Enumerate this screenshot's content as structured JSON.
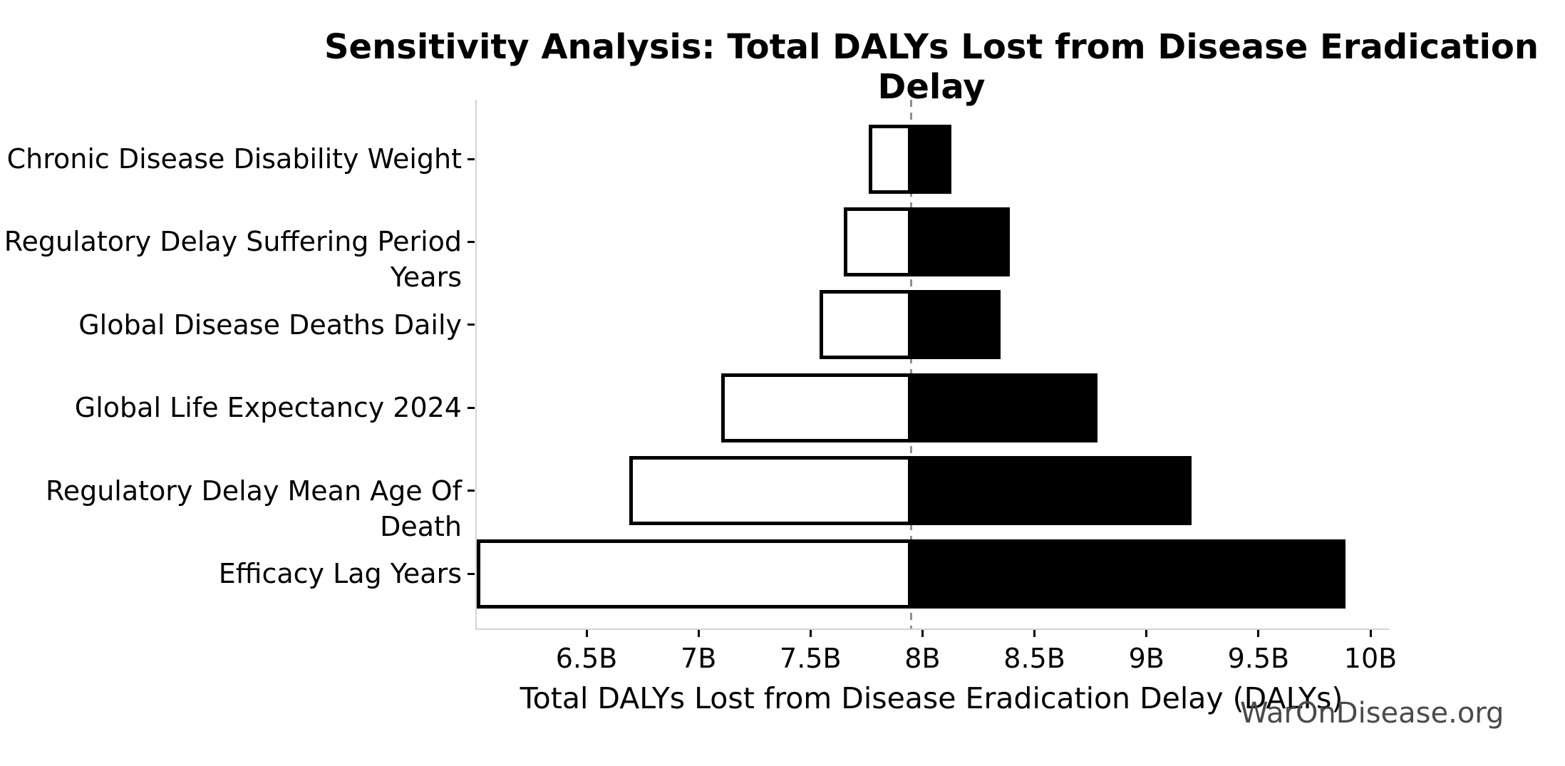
{
  "chart_data": {
    "type": "bar",
    "variant": "tornado-sensitivity",
    "title": "Sensitivity Analysis: Total DALYs Lost from Disease Eradication Delay",
    "xlabel": "Total DALYs Lost from Disease Eradication Delay (DALYs)",
    "watermark": "WarOnDisease.org",
    "baseline_value": 7.95,
    "value_unit": "billions of DALYs",
    "xlim": [
      6.01,
      10.07
    ],
    "grid": false,
    "legend": false,
    "bars": [
      {
        "label": "Chronic Disease Disability Weight",
        "low": 7.76,
        "high": 8.13
      },
      {
        "label": "Regulatory Delay Suffering Period Years",
        "low": 7.65,
        "high": 8.39
      },
      {
        "label": "Global Disease Deaths Daily",
        "low": 7.54,
        "high": 8.35
      },
      {
        "label": "Global Life Expectancy 2024",
        "low": 7.1,
        "high": 8.78
      },
      {
        "label": "Regulatory Delay Mean Age Of Death",
        "low": 6.69,
        "high": 9.2
      },
      {
        "label": "Efficacy Lag Years",
        "low": 6.01,
        "high": 9.89
      }
    ],
    "x_ticks": [
      {
        "value": 6.5,
        "label": "6.5B"
      },
      {
        "value": 7.0,
        "label": "7B"
      },
      {
        "value": 7.5,
        "label": "7.5B"
      },
      {
        "value": 8.0,
        "label": "8B"
      },
      {
        "value": 8.5,
        "label": "8.5B"
      },
      {
        "value": 9.0,
        "label": "9B"
      },
      {
        "value": 9.5,
        "label": "9.5B"
      },
      {
        "value": 10.0,
        "label": "10B"
      }
    ],
    "colors": {
      "low_bar_fill": "#ffffff",
      "low_bar_edge": "#000000",
      "high_bar_fill": "#000000",
      "baseline_line": "#8f8f8f",
      "spine": "#d4d4d4",
      "tick": "#000000",
      "text": "#000000",
      "watermark": "#4a4a4a"
    }
  }
}
